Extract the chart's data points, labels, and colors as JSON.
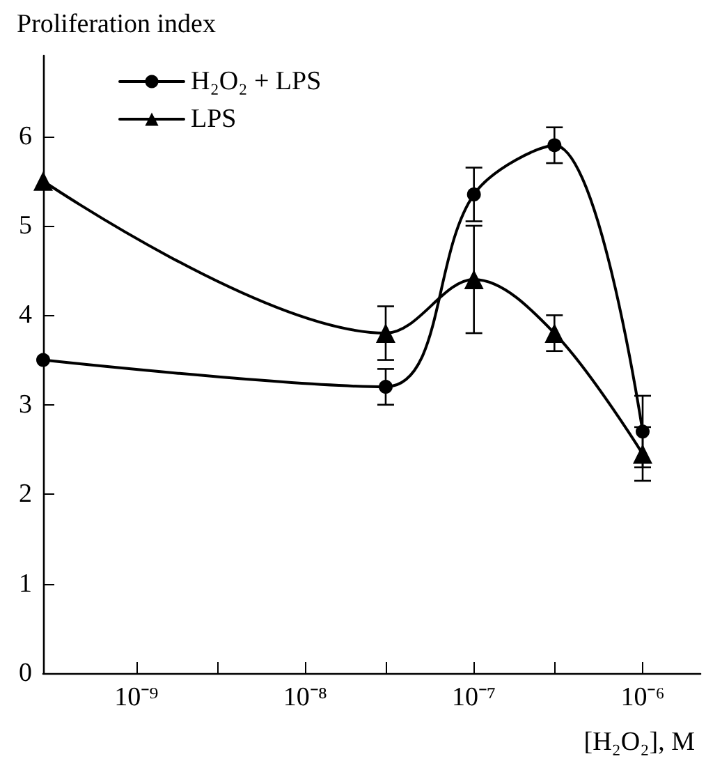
{
  "chart_data": {
    "type": "line",
    "ylabel": "Proliferation index",
    "xlabel": "[H₂O₂], M",
    "log": "x",
    "grid": false,
    "legend": "top left",
    "line_style": "solid",
    "xlim": [
      2.8e-10,
      2.2e-06
    ],
    "xticks": [
      {
        "value": 1e-09,
        "label": "10⁻⁹"
      },
      {
        "value": 3e-09,
        "label": null
      },
      {
        "value": 1e-08,
        "label": "10⁻⁸"
      },
      {
        "value": 3e-08,
        "label": null
      },
      {
        "value": 1e-07,
        "label": "10⁻⁷"
      },
      {
        "value": 3e-07,
        "label": null
      },
      {
        "value": 1e-06,
        "label": "10⁻⁶"
      }
    ],
    "ylim": [
      0,
      6.9
    ],
    "yticks": [
      0,
      1,
      2,
      3,
      4,
      5,
      6
    ],
    "x": [
      2.8e-10,
      3e-08,
      1e-07,
      3e-07,
      1e-06
    ],
    "series": [
      {
        "name": "H₂O₂ + LPS",
        "color": "#000000",
        "marker": "circle",
        "values": [
          3.5,
          3.2,
          5.35,
          5.9,
          2.7
        ],
        "errors": [
          null,
          0.2,
          0.3,
          0.2,
          0.4
        ]
      },
      {
        "name": "LPS",
        "color": "#000000",
        "marker": "triangle",
        "values": [
          5.5,
          3.8,
          4.4,
          3.8,
          2.45
        ],
        "errors": [
          null,
          0.3,
          0.6,
          0.2,
          0.3
        ]
      }
    ]
  }
}
